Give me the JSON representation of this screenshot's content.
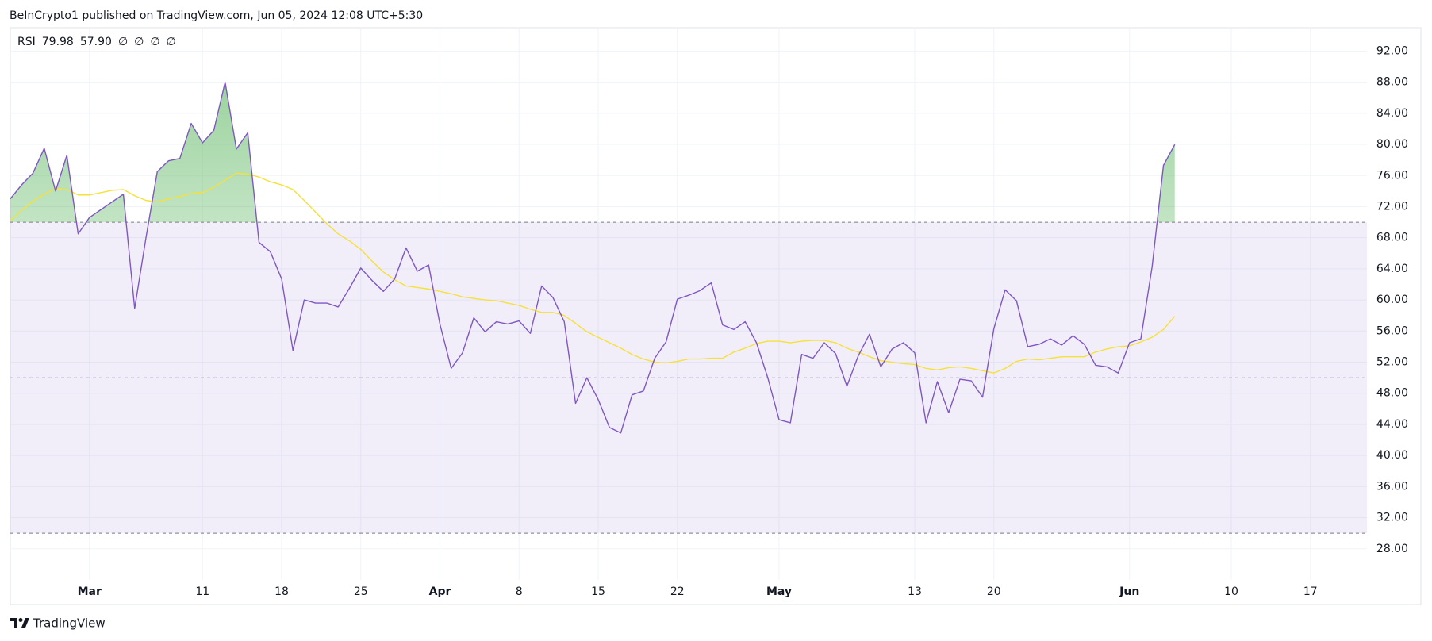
{
  "header": {
    "text": "BeInCrypto1 published on TradingView.com, Jun 05, 2024 12:08 UTC+5:30"
  },
  "footer": {
    "brand": "TradingView"
  },
  "chart_data": {
    "type": "line",
    "legend": {
      "label": "RSI",
      "values": [
        "79.98",
        "57.90"
      ],
      "placeholders": [
        "∅",
        "∅",
        "∅",
        "∅"
      ]
    },
    "x": [
      "2024-02-23",
      "2024-02-24",
      "2024-02-25",
      "2024-02-26",
      "2024-02-27",
      "2024-02-28",
      "2024-02-29",
      "2024-03-01",
      "2024-03-02",
      "2024-03-03",
      "2024-03-04",
      "2024-03-05",
      "2024-03-06",
      "2024-03-07",
      "2024-03-08",
      "2024-03-09",
      "2024-03-10",
      "2024-03-11",
      "2024-03-12",
      "2024-03-13",
      "2024-03-14",
      "2024-03-15",
      "2024-03-16",
      "2024-03-17",
      "2024-03-18",
      "2024-03-19",
      "2024-03-20",
      "2024-03-21",
      "2024-03-22",
      "2024-03-23",
      "2024-03-24",
      "2024-03-25",
      "2024-03-26",
      "2024-03-27",
      "2024-03-28",
      "2024-03-29",
      "2024-03-30",
      "2024-03-31",
      "2024-04-01",
      "2024-04-02",
      "2024-04-03",
      "2024-04-04",
      "2024-04-05",
      "2024-04-06",
      "2024-04-07",
      "2024-04-08",
      "2024-04-09",
      "2024-04-10",
      "2024-04-11",
      "2024-04-12",
      "2024-04-13",
      "2024-04-14",
      "2024-04-15",
      "2024-04-16",
      "2024-04-17",
      "2024-04-18",
      "2024-04-19",
      "2024-04-20",
      "2024-04-21",
      "2024-04-22",
      "2024-04-23",
      "2024-04-24",
      "2024-04-25",
      "2024-04-26",
      "2024-04-27",
      "2024-04-28",
      "2024-04-29",
      "2024-04-30",
      "2024-05-01",
      "2024-05-02",
      "2024-05-03",
      "2024-05-04",
      "2024-05-05",
      "2024-05-06",
      "2024-05-07",
      "2024-05-08",
      "2024-05-09",
      "2024-05-10",
      "2024-05-11",
      "2024-05-12",
      "2024-05-13",
      "2024-05-14",
      "2024-05-15",
      "2024-05-16",
      "2024-05-17",
      "2024-05-18",
      "2024-05-19",
      "2024-05-20",
      "2024-05-21",
      "2024-05-22",
      "2024-05-23",
      "2024-05-24",
      "2024-05-25",
      "2024-05-26",
      "2024-05-27",
      "2024-05-28",
      "2024-05-29",
      "2024-05-30",
      "2024-05-31",
      "2024-06-01",
      "2024-06-02",
      "2024-06-03",
      "2024-06-04",
      "2024-06-05"
    ],
    "series": [
      {
        "name": "RSI",
        "color": "#7e57c2",
        "values": [
          73.0,
          74.8,
          76.3,
          79.5,
          74.0,
          78.6,
          68.5,
          70.6,
          71.6,
          72.6,
          73.6,
          58.9,
          68.0,
          76.5,
          77.9,
          78.2,
          82.7,
          80.2,
          81.8,
          88.0,
          79.4,
          81.5,
          67.4,
          66.2,
          62.7,
          53.5,
          60.0,
          59.6,
          59.6,
          59.1,
          61.5,
          64.1,
          62.5,
          61.1,
          62.7,
          66.7,
          63.7,
          64.5,
          56.9,
          51.2,
          53.2,
          57.7,
          55.9,
          57.2,
          56.9,
          57.3,
          55.7,
          61.8,
          60.3,
          57.2,
          46.7,
          50.0,
          47.2,
          43.6,
          42.9,
          47.8,
          48.3,
          52.5,
          54.6,
          60.1,
          60.6,
          61.2,
          62.2,
          56.8,
          56.2,
          57.2,
          54.5,
          50.0,
          44.6,
          44.2,
          53.0,
          52.5,
          54.5,
          53.1,
          48.9,
          52.8,
          55.6,
          51.4,
          53.7,
          54.5,
          53.2,
          44.2,
          49.5,
          45.5,
          49.8,
          49.6,
          47.5,
          56.3,
          61.3,
          59.9,
          54.0,
          54.3,
          55.0,
          54.2,
          55.4,
          54.3,
          51.6,
          51.4,
          50.6,
          54.5,
          55.0,
          64.3,
          77.3,
          79.98
        ]
      },
      {
        "color": "#f5e13a",
        "values": [
          70.2,
          71.5,
          72.7,
          73.6,
          74.3,
          74.2,
          73.5,
          73.5,
          73.8,
          74.1,
          74.2,
          73.4,
          72.8,
          72.6,
          73.0,
          73.3,
          73.7,
          73.8,
          74.5,
          75.4,
          76.3,
          76.2,
          75.8,
          75.2,
          74.8,
          74.2,
          72.8,
          71.3,
          69.8,
          68.5,
          67.6,
          66.5,
          65.0,
          63.6,
          62.6,
          61.8,
          61.6,
          61.4,
          61.1,
          60.8,
          60.4,
          60.2,
          60.0,
          59.9,
          59.6,
          59.3,
          58.8,
          58.4,
          58.4,
          58.0,
          57.0,
          55.9,
          55.2,
          54.5,
          53.8,
          53.0,
          52.4,
          52.0,
          51.9,
          52.1,
          52.4,
          52.4,
          52.5,
          52.5,
          53.3,
          53.8,
          54.4,
          54.7,
          54.7,
          54.5,
          54.7,
          54.8,
          54.8,
          54.5,
          53.8,
          53.3,
          52.7,
          52.2,
          52.0,
          51.8,
          51.7,
          51.2,
          51.0,
          51.3,
          51.4,
          51.2,
          50.9,
          50.6,
          51.2,
          52.1,
          52.4,
          52.3,
          52.5,
          52.7,
          52.7,
          52.7,
          53.3,
          53.7,
          54.0,
          54.1,
          54.6,
          55.2,
          56.2,
          57.9
        ]
      }
    ],
    "bands": [
      70,
      50,
      30
    ],
    "band_color": "#7e57c2",
    "overbought_color": "#4caf50",
    "xlim": [
      "2024-02-23",
      "2024-06-22"
    ],
    "xticks": [
      {
        "value": "2024-03-01",
        "label": "Mar"
      },
      {
        "value": "2024-03-11",
        "label": "11"
      },
      {
        "value": "2024-03-18",
        "label": "18"
      },
      {
        "value": "2024-03-25",
        "label": "25"
      },
      {
        "value": "2024-04-01",
        "label": "Apr"
      },
      {
        "value": "2024-04-08",
        "label": "8"
      },
      {
        "value": "2024-04-15",
        "label": "15"
      },
      {
        "value": "2024-04-22",
        "label": "22"
      },
      {
        "value": "2024-05-01",
        "label": "May"
      },
      {
        "value": "2024-05-13",
        "label": "13"
      },
      {
        "value": "2024-05-20",
        "label": "20"
      },
      {
        "value": "2024-06-01",
        "label": "Jun"
      },
      {
        "value": "2024-06-10",
        "label": "10"
      },
      {
        "value": "2024-06-17",
        "label": "17"
      }
    ],
    "ylim": [
      24,
      95
    ],
    "yticks": [
      {
        "value": 28,
        "label": "28.00"
      },
      {
        "value": 32,
        "label": "32.00"
      },
      {
        "value": 36,
        "label": "36.00"
      },
      {
        "value": 40,
        "label": "40.00"
      },
      {
        "value": 44,
        "label": "44.00"
      },
      {
        "value": 48,
        "label": "48.00"
      },
      {
        "value": 52,
        "label": "52.00"
      },
      {
        "value": 56,
        "label": "56.00"
      },
      {
        "value": 60,
        "label": "60.00"
      },
      {
        "value": 64,
        "label": "64.00"
      },
      {
        "value": 68,
        "label": "68.00"
      },
      {
        "value": 72,
        "label": "72.00"
      },
      {
        "value": 76,
        "label": "76.00"
      },
      {
        "value": 80,
        "label": "80.00"
      },
      {
        "value": 84,
        "label": "84.00"
      },
      {
        "value": 88,
        "label": "88.00"
      },
      {
        "value": 92,
        "label": "92.00"
      }
    ],
    "grid": true
  }
}
